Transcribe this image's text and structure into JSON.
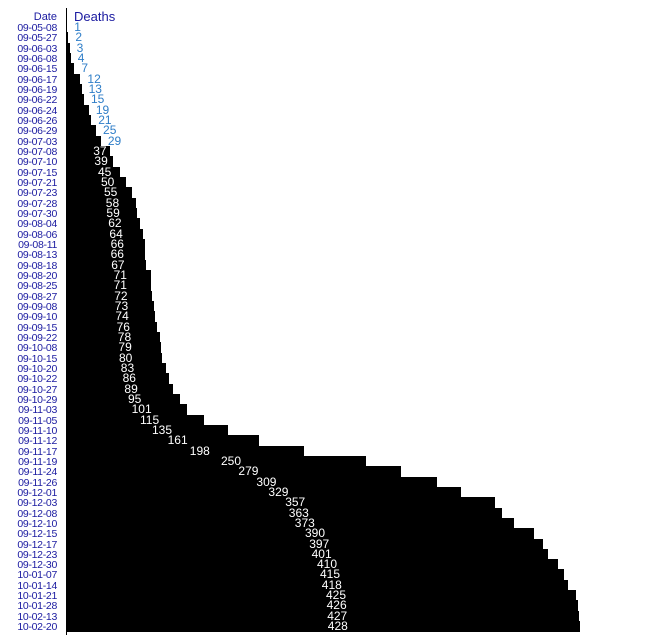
{
  "chart_data": {
    "type": "bar",
    "orientation": "horizontal",
    "column_headers": {
      "category": "Date",
      "value": "Deaths"
    },
    "categories": [
      "09-05-08",
      "09-05-27",
      "09-06-03",
      "09-06-08",
      "09-06-15",
      "09-06-17",
      "09-06-19",
      "09-06-22",
      "09-06-24",
      "09-06-26",
      "09-06-29",
      "09-07-03",
      "09-07-08",
      "09-07-10",
      "09-07-15",
      "09-07-21",
      "09-07-23",
      "09-07-28",
      "09-07-30",
      "09-08-04",
      "09-08-06",
      "09-08-11",
      "09-08-13",
      "09-08-18",
      "09-08-20",
      "09-08-25",
      "09-08-27",
      "09-09-08",
      "09-09-10",
      "09-09-15",
      "09-09-22",
      "09-10-08",
      "09-10-15",
      "09-10-20",
      "09-10-22",
      "09-10-27",
      "09-10-29",
      "09-11-03",
      "09-11-05",
      "09-11-10",
      "09-11-12",
      "09-11-17",
      "09-11-19",
      "09-11-24",
      "09-11-26",
      "09-12-01",
      "09-12-03",
      "09-12-08",
      "09-12-10",
      "09-12-15",
      "09-12-17",
      "09-12-23",
      "09-12-30",
      "10-01-07",
      "10-01-14",
      "10-01-21",
      "10-01-28",
      "10-02-13",
      "10-02-20"
    ],
    "values": [
      1,
      2,
      3,
      4,
      7,
      12,
      13,
      15,
      19,
      21,
      25,
      29,
      37,
      39,
      45,
      50,
      55,
      58,
      59,
      62,
      64,
      66,
      66,
      67,
      71,
      71,
      72,
      73,
      74,
      76,
      78,
      79,
      80,
      83,
      86,
      89,
      95,
      101,
      115,
      135,
      161,
      198,
      250,
      279,
      309,
      329,
      357,
      363,
      373,
      390,
      397,
      401,
      410,
      415,
      418,
      425,
      426,
      427,
      428
    ],
    "xlim": [
      0,
      428
    ],
    "grid": false,
    "colors": {
      "bar": "#000000",
      "date_label": "#1a1aa0",
      "outside_value_label": "#2f7ec8",
      "inside_value_label": "#ffffff"
    }
  }
}
